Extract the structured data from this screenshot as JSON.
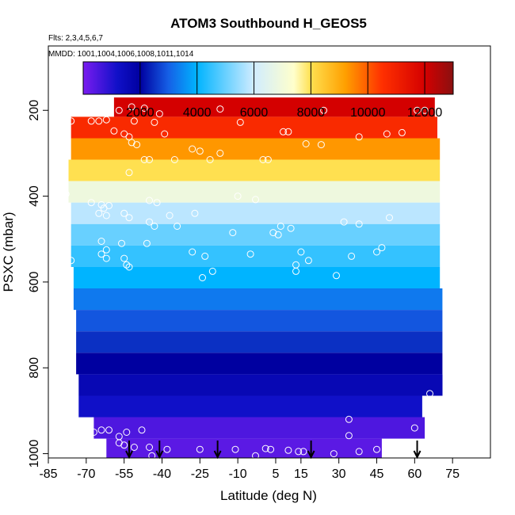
{
  "chart_data": {
    "type": "heatmap",
    "title": "ATOM3 Southbound H_GEOS5",
    "subtitle_flights": "Flts: 2,3,4,5,6,7",
    "subtitle_dates": "MMDD: 1001,1004,1006,1008,1011,1014",
    "xlabel": "Latitude (deg N)",
    "ylabel": "PSXC (mbar)",
    "xlim": [
      -85,
      90
    ],
    "ylim": [
      1010,
      50
    ],
    "x_ticks": [
      -85,
      -70,
      -55,
      -40,
      -25,
      -10,
      5,
      15,
      30,
      45,
      60,
      75
    ],
    "x_tick_labels": [
      "-85",
      "-70",
      "-55",
      "-40",
      "-25",
      "-10",
      "5",
      "15",
      "30",
      "45",
      "60",
      "75"
    ],
    "y_ticks": [
      200,
      400,
      600,
      800,
      1000
    ],
    "y_tick_labels": [
      "200",
      "400",
      "600",
      "800",
      "1000"
    ],
    "colorbar": {
      "min": 0,
      "max": 13000,
      "ticks": [
        2000,
        4000,
        6000,
        8000,
        10000,
        12000
      ],
      "tick_labels": [
        "2000",
        "4000",
        "6000",
        "8000",
        "10000",
        "12000"
      ],
      "stops": [
        {
          "v": 0,
          "c": "#7a1cf0"
        },
        {
          "v": 1200,
          "c": "#1010c8"
        },
        {
          "v": 2000,
          "c": "#0000a0"
        },
        {
          "v": 3000,
          "c": "#1560e6"
        },
        {
          "v": 4000,
          "c": "#00b4ff"
        },
        {
          "v": 6000,
          "c": "#d0ecff"
        },
        {
          "v": 7400,
          "c": "#ffffcc"
        },
        {
          "v": 8000,
          "c": "#ffe050"
        },
        {
          "v": 9200,
          "c": "#ffa000"
        },
        {
          "v": 10500,
          "c": "#ff3000"
        },
        {
          "v": 12000,
          "c": "#d40000"
        },
        {
          "v": 13000,
          "c": "#8a1010"
        }
      ]
    },
    "layers": [
      {
        "p_top": 170,
        "p_bot": 215,
        "lat_min": -59,
        "lat_max": 68,
        "value": 12000
      },
      {
        "p_top": 215,
        "p_bot": 265,
        "lat_min": -76,
        "lat_max": 69,
        "value": 10700
      },
      {
        "p_top": 265,
        "p_bot": 315,
        "lat_min": -76,
        "lat_max": 70,
        "value": 9300
      },
      {
        "p_top": 315,
        "p_bot": 365,
        "lat_min": -77,
        "lat_max": 70,
        "value": 8000
      },
      {
        "p_top": 365,
        "p_bot": 415,
        "lat_min": -77,
        "lat_max": 70,
        "value": 6900
      },
      {
        "p_top": 415,
        "p_bot": 465,
        "lat_min": -76,
        "lat_max": 70,
        "value": 5800
      },
      {
        "p_top": 465,
        "p_bot": 515,
        "lat_min": -76,
        "lat_max": 70,
        "value": 5000
      },
      {
        "p_top": 515,
        "p_bot": 565,
        "lat_min": -76,
        "lat_max": 70,
        "value": 4500
      },
      {
        "p_top": 565,
        "p_bot": 615,
        "lat_min": -75,
        "lat_max": 70,
        "value": 4000
      },
      {
        "p_top": 615,
        "p_bot": 665,
        "lat_min": -75,
        "lat_max": 71,
        "value": 3300
      },
      {
        "p_top": 665,
        "p_bot": 715,
        "lat_min": -74,
        "lat_max": 71,
        "value": 2900
      },
      {
        "p_top": 715,
        "p_bot": 765,
        "lat_min": -74,
        "lat_max": 71,
        "value": 2500
      },
      {
        "p_top": 765,
        "p_bot": 815,
        "lat_min": -74,
        "lat_max": 71,
        "value": 2000
      },
      {
        "p_top": 815,
        "p_bot": 865,
        "lat_min": -73,
        "lat_max": 71,
        "value": 1600
      },
      {
        "p_top": 865,
        "p_bot": 915,
        "lat_min": -73,
        "lat_max": 63,
        "value": 1200
      },
      {
        "p_top": 915,
        "p_bot": 965,
        "lat_min": -67,
        "lat_max": 64,
        "value": 500
      },
      {
        "p_top": 965,
        "p_bot": 1010,
        "lat_min": -62,
        "lat_max": 47,
        "value": 350
      }
    ],
    "observations": [
      {
        "lat": -57,
        "p": 200
      },
      {
        "lat": -52,
        "p": 192
      },
      {
        "lat": -47,
        "p": 195
      },
      {
        "lat": -41,
        "p": 208
      },
      {
        "lat": -17,
        "p": 197
      },
      {
        "lat": 24,
        "p": 200
      },
      {
        "lat": 61,
        "p": 200
      },
      {
        "lat": 64,
        "p": 200
      },
      {
        "lat": -76,
        "p": 225
      },
      {
        "lat": -68,
        "p": 225
      },
      {
        "lat": -65,
        "p": 225
      },
      {
        "lat": -62,
        "p": 222
      },
      {
        "lat": -51,
        "p": 225
      },
      {
        "lat": -43,
        "p": 228
      },
      {
        "lat": -9,
        "p": 228
      },
      {
        "lat": -59,
        "p": 248
      },
      {
        "lat": -55,
        "p": 255
      },
      {
        "lat": -53,
        "p": 262
      },
      {
        "lat": -39,
        "p": 255
      },
      {
        "lat": 8,
        "p": 250
      },
      {
        "lat": 10,
        "p": 250
      },
      {
        "lat": 38,
        "p": 262
      },
      {
        "lat": 49,
        "p": 255
      },
      {
        "lat": 55,
        "p": 252
      },
      {
        "lat": -52,
        "p": 275
      },
      {
        "lat": -50,
        "p": 280
      },
      {
        "lat": -28,
        "p": 290
      },
      {
        "lat": -25,
        "p": 295
      },
      {
        "lat": -17,
        "p": 300
      },
      {
        "lat": 17,
        "p": 278
      },
      {
        "lat": 23,
        "p": 280
      },
      {
        "lat": -47,
        "p": 315
      },
      {
        "lat": -45,
        "p": 315
      },
      {
        "lat": -35,
        "p": 315
      },
      {
        "lat": -21,
        "p": 315
      },
      {
        "lat": 0,
        "p": 315
      },
      {
        "lat": 2,
        "p": 315
      },
      {
        "lat": -53,
        "p": 345
      },
      {
        "lat": -78,
        "p": 395
      },
      {
        "lat": -68,
        "p": 415
      },
      {
        "lat": -64,
        "p": 420
      },
      {
        "lat": -61,
        "p": 422
      },
      {
        "lat": -63,
        "p": 428
      },
      {
        "lat": -45,
        "p": 410
      },
      {
        "lat": -42,
        "p": 415
      },
      {
        "lat": -10,
        "p": 400
      },
      {
        "lat": -3,
        "p": 408
      },
      {
        "lat": -65,
        "p": 440
      },
      {
        "lat": -62,
        "p": 445
      },
      {
        "lat": -55,
        "p": 440
      },
      {
        "lat": -53,
        "p": 450
      },
      {
        "lat": -37,
        "p": 445
      },
      {
        "lat": -27,
        "p": 440
      },
      {
        "lat": -45,
        "p": 460
      },
      {
        "lat": -43,
        "p": 470
      },
      {
        "lat": -34,
        "p": 470
      },
      {
        "lat": 7,
        "p": 470
      },
      {
        "lat": 11,
        "p": 475
      },
      {
        "lat": 32,
        "p": 460
      },
      {
        "lat": 38,
        "p": 465
      },
      {
        "lat": 50,
        "p": 450
      },
      {
        "lat": -12,
        "p": 485
      },
      {
        "lat": 4,
        "p": 485
      },
      {
        "lat": 6,
        "p": 490
      },
      {
        "lat": -64,
        "p": 505
      },
      {
        "lat": -56,
        "p": 510
      },
      {
        "lat": -46,
        "p": 510
      },
      {
        "lat": -62,
        "p": 525
      },
      {
        "lat": -64,
        "p": 535
      },
      {
        "lat": -62,
        "p": 545
      },
      {
        "lat": -28,
        "p": 530
      },
      {
        "lat": 15,
        "p": 530
      },
      {
        "lat": -5,
        "p": 535
      },
      {
        "lat": -23,
        "p": 540
      },
      {
        "lat": 35,
        "p": 540
      },
      {
        "lat": 18,
        "p": 550
      },
      {
        "lat": 47,
        "p": 520
      },
      {
        "lat": 45,
        "p": 530
      },
      {
        "lat": -76,
        "p": 550
      },
      {
        "lat": -55,
        "p": 545
      },
      {
        "lat": -54,
        "p": 560
      },
      {
        "lat": -53,
        "p": 565
      },
      {
        "lat": 13,
        "p": 560
      },
      {
        "lat": -20,
        "p": 575
      },
      {
        "lat": 13,
        "p": 575
      },
      {
        "lat": 29,
        "p": 585
      },
      {
        "lat": -24,
        "p": 590
      },
      {
        "lat": -75,
        "p": 870
      },
      {
        "lat": 34,
        "p": 920
      },
      {
        "lat": 66,
        "p": 860
      },
      {
        "lat": 60,
        "p": 940
      },
      {
        "lat": -71,
        "p": 950
      },
      {
        "lat": -67,
        "p": 950
      },
      {
        "lat": -64,
        "p": 945
      },
      {
        "lat": -61,
        "p": 945
      },
      {
        "lat": -54,
        "p": 950
      },
      {
        "lat": -48,
        "p": 945
      },
      {
        "lat": -57,
        "p": 960
      },
      {
        "lat": -57,
        "p": 975
      },
      {
        "lat": -55,
        "p": 980
      },
      {
        "lat": -51,
        "p": 985
      },
      {
        "lat": -45,
        "p": 985
      },
      {
        "lat": -38,
        "p": 990
      },
      {
        "lat": -25,
        "p": 990
      },
      {
        "lat": -11,
        "p": 990
      },
      {
        "lat": 1,
        "p": 988
      },
      {
        "lat": 3,
        "p": 990
      },
      {
        "lat": 10,
        "p": 992
      },
      {
        "lat": 14,
        "p": 995
      },
      {
        "lat": 16,
        "p": 995
      },
      {
        "lat": 34,
        "p": 958
      },
      {
        "lat": 38,
        "p": 995
      },
      {
        "lat": 45,
        "p": 990
      },
      {
        "lat": 28,
        "p": 1000
      },
      {
        "lat": -44,
        "p": 1005
      },
      {
        "lat": -3,
        "p": 1005
      }
    ],
    "arrows_lat": [
      -53,
      -41,
      -18,
      19,
      61
    ]
  }
}
